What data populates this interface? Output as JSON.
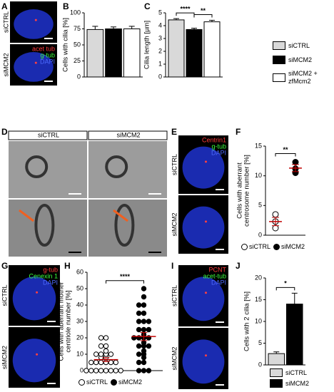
{
  "panel_labels": [
    "A",
    "B",
    "C",
    "D",
    "E",
    "F",
    "G",
    "H",
    "I",
    "J"
  ],
  "micrographs": [
    {
      "conditions": [
        "siCTRL",
        "siMCM2"
      ],
      "stains": [
        {
          "text": "acet tub",
          "color": "#ff3b3b"
        },
        {
          "text": "g-tub",
          "color": "#3cff3c"
        },
        {
          "text": "DAPI",
          "color": "#4d6bff"
        }
      ]
    },
    {
      "conditions": [
        "siCTRL",
        "siMCM2"
      ],
      "stains": []
    },
    {
      "conditions": [
        "siCTRL",
        "siMCM2"
      ],
      "stains": [
        {
          "text": "Centrin1",
          "color": "#ff3b3b"
        },
        {
          "text": "g-tub",
          "color": "#3cff3c"
        },
        {
          "text": "DAPI",
          "color": "#4d6bff"
        }
      ]
    },
    {
      "conditions": [
        "siCTRL",
        "siMCM2"
      ],
      "stains": [
        {
          "text": "g-tub",
          "color": "#ff3b3b"
        },
        {
          "text": "Cenexin 1",
          "color": "#3cff3c"
        },
        {
          "text": "DAPI",
          "color": "#4d6bff"
        }
      ]
    },
    {
      "conditions": [
        "siCTRL",
        "siMCM2"
      ],
      "stains": [
        {
          "text": "PCNT",
          "color": "#ff3b3b"
        },
        {
          "text": "acet-tub",
          "color": "#3cff3c"
        },
        {
          "text": "DAPI",
          "color": "#4d6bff"
        }
      ]
    }
  ],
  "chart_data": [
    {
      "type": "bar",
      "ylabel": [
        "Cells with cilia [%]"
      ],
      "categories": [
        null
      ],
      "series": [
        {
          "color": "#d9d9d9",
          "values": [
            74
          ],
          "errors": [
            5
          ]
        },
        {
          "color": "#000000",
          "values": [
            75
          ],
          "errors": [
            3
          ]
        },
        {
          "color": "#ffffff",
          "values": [
            75
          ],
          "errors": [
            4
          ]
        }
      ],
      "ylim": [
        0,
        100
      ],
      "yticks": [
        0,
        25,
        50,
        75,
        100
      ]
    },
    {
      "type": "bar",
      "ylabel": [
        "Cilia length [µm]"
      ],
      "categories": [
        null
      ],
      "series": [
        {
          "name": "siCTRL",
          "color": "#d9d9d9",
          "values": [
            4.45
          ],
          "errors": [
            0.1
          ]
        },
        {
          "name": "siMCM2",
          "color": "#000000",
          "values": [
            3.7
          ],
          "errors": [
            0.1
          ]
        },
        {
          "name": "siMCM2 + zfMcm2",
          "color": "#ffffff",
          "values": [
            4.3
          ],
          "errors": [
            0.12
          ]
        }
      ],
      "ylim": [
        0,
        5
      ],
      "yticks": [
        0,
        1,
        2,
        3,
        4,
        5
      ],
      "annotations": [
        "****",
        "**"
      ],
      "legend": "right"
    },
    {
      "type": "dot",
      "ylabel": [
        "Cells with aberrant",
        "centrosome number [%]"
      ],
      "series": [
        {
          "name": "siCTRL",
          "marker": "open",
          "values": [
            1.2,
            2.3,
            3.5
          ],
          "mean": 2.3,
          "error": 0.7
        },
        {
          "name": "siMCM2",
          "marker": "filled",
          "values": [
            12.3,
            11.2,
            10.5
          ],
          "mean": 11.3,
          "error": 0.6
        }
      ],
      "mean_color": "#c00000",
      "ylim": [
        0,
        15
      ],
      "yticks": [
        0,
        5,
        10,
        15
      ],
      "annotations": [
        "**"
      ],
      "legend": "bottom"
    },
    {
      "type": "dot",
      "ylabel": [
        "Cells with aberrant mother",
        "centriole number [%]"
      ],
      "series": [
        {
          "name": "siCTRL",
          "marker": "open",
          "values": [
            0,
            0,
            0,
            0,
            0,
            0,
            0,
            0,
            5,
            5,
            5,
            5,
            5,
            5,
            8,
            8,
            10,
            10,
            10,
            10,
            12,
            15,
            15,
            20,
            20
          ],
          "mean": 6.7,
          "error": 1.2
        },
        {
          "name": "siMCM2",
          "marker": "filled",
          "values": [
            0,
            0,
            0,
            5,
            5,
            8,
            10,
            10,
            12,
            15,
            15,
            15,
            17,
            20,
            20,
            20,
            20,
            22,
            25,
            25,
            25,
            30,
            30,
            30,
            35,
            35,
            40,
            40,
            45,
            50
          ],
          "mean": 20.8,
          "error": 2.5
        }
      ],
      "mean_color": "#c00000",
      "ylim": [
        0,
        60
      ],
      "yticks": [
        0,
        10,
        20,
        30,
        40,
        50,
        60
      ],
      "annotations": [
        "****"
      ],
      "legend": "bottom"
    },
    {
      "type": "bar",
      "ylabel": [
        "Cells with 2 cilia [%]"
      ],
      "categories": [
        null
      ],
      "series": [
        {
          "name": "siCTRL",
          "color": "#d9d9d9",
          "values": [
            2.6
          ],
          "errors": [
            0.4
          ]
        },
        {
          "name": "siMCM2",
          "color": "#000000",
          "values": [
            14
          ],
          "errors": [
            2.5
          ]
        }
      ],
      "ylim": [
        0,
        20
      ],
      "yticks": [
        0,
        5,
        10,
        15,
        20
      ],
      "annotations": [
        "*"
      ],
      "legend": "bottom-stack"
    }
  ]
}
